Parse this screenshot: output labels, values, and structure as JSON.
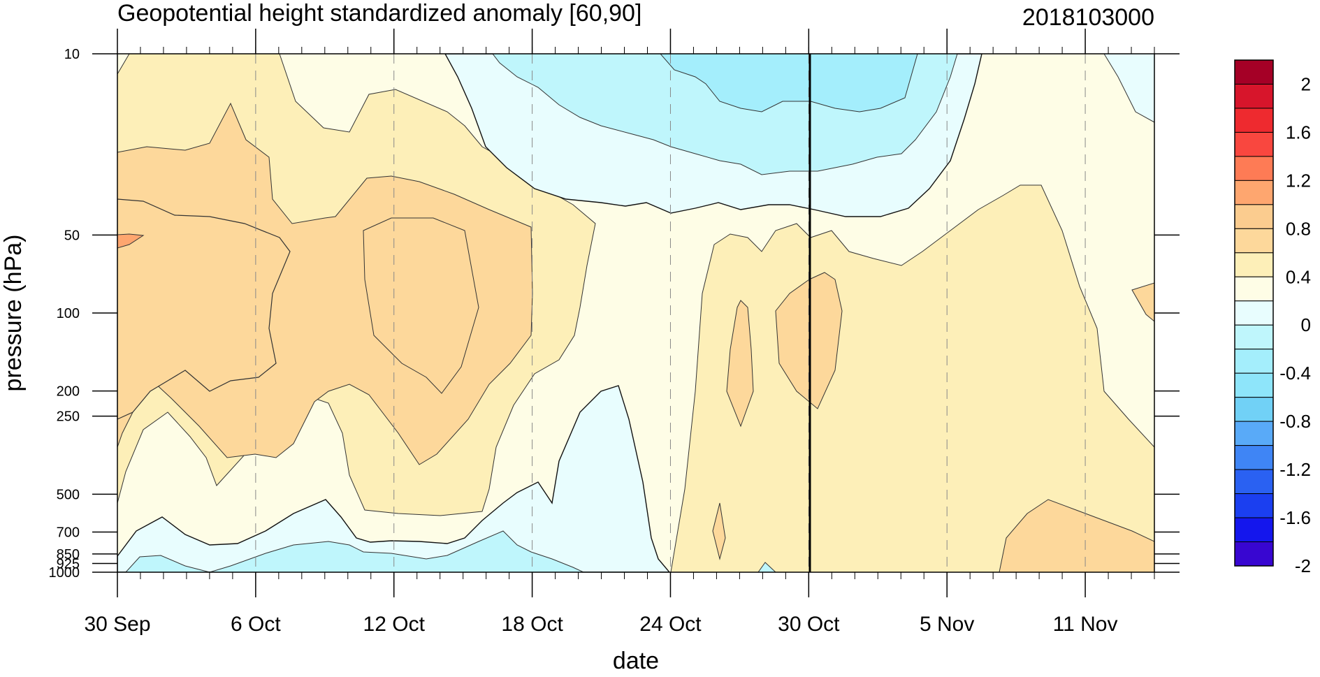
{
  "chart_data": {
    "type": "contour",
    "title": "Geopotential height standardized anomaly [60,90]",
    "date_stamp": "2018103000",
    "xlabel": "date",
    "ylabel": "pressure (hPa)",
    "x_ticks": [
      {
        "label": "30 Sep",
        "day": 0
      },
      {
        "label": "6 Oct",
        "day": 6
      },
      {
        "label": "12 Oct",
        "day": 12
      },
      {
        "label": "18 Oct",
        "day": 18
      },
      {
        "label": "24 Oct",
        "day": 24
      },
      {
        "label": "30 Oct",
        "day": 30
      },
      {
        "label": "5 Nov",
        "day": 36
      },
      {
        "label": "11 Nov",
        "day": 42
      }
    ],
    "x_range_days": [
      0,
      45
    ],
    "y_ticks": [
      "10",
      "50",
      "100",
      "200",
      "250",
      "500",
      "700",
      "850",
      "925",
      "1000"
    ],
    "y_scale": "log",
    "y_range": [
      10,
      1000
    ],
    "y_reversed": true,
    "current_date_line": "30 Oct",
    "colorbar": {
      "labels": [
        "2",
        "1.6",
        "1.2",
        "0.8",
        "0.4",
        "0",
        "-0.4",
        "-0.8",
        "-1.2",
        "-1.6",
        "-2"
      ],
      "colors": [
        "#a50026",
        "#d7152b",
        "#ee2a2f",
        "#f9473f",
        "#fe7b55",
        "#fea66f",
        "#fbcc8f",
        "#fdd89b",
        "#fdefb8",
        "#fefde6",
        "#e8fdfe",
        "#bff6fc",
        "#a4eefc",
        "#8ee5fa",
        "#71d1f6",
        "#59aaf8",
        "#3f85f5",
        "#2a61f2",
        "#1b3ff0",
        "#1416ed",
        "#3806d1"
      ]
    }
  }
}
